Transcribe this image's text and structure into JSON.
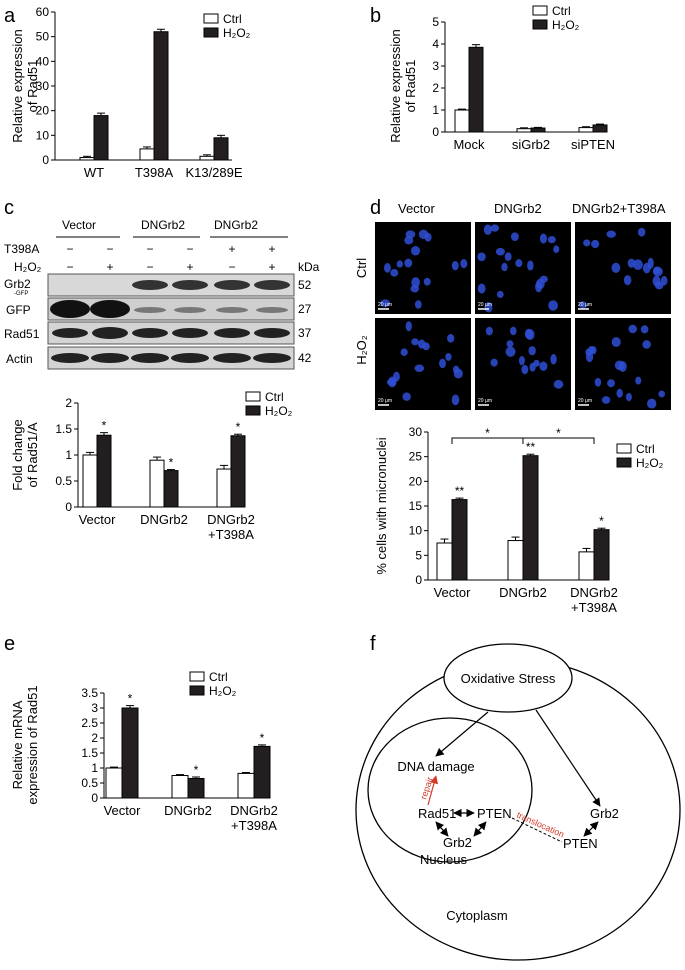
{
  "panels": {
    "a": "a",
    "b": "b",
    "c": "c",
    "d": "d",
    "e": "e",
    "f": "f"
  },
  "chart_data": [
    {
      "id": "a",
      "type": "bar",
      "categories": [
        "WT",
        "T398A",
        "K13/289E"
      ],
      "series": [
        {
          "name": "Ctrl",
          "values": [
            1,
            4.5,
            1.5
          ],
          "err": [
            0.5,
            0.8,
            0.6
          ]
        },
        {
          "name": "H₂O₂",
          "values": [
            18,
            52,
            9
          ],
          "err": [
            1,
            1,
            1
          ]
        }
      ],
      "ylabel": [
        "Relative expression",
        "of Rad51"
      ],
      "yticks": [
        0,
        10,
        20,
        30,
        40,
        50,
        60
      ],
      "ylim": [
        0,
        60
      ],
      "legend": "top-right"
    },
    {
      "id": "b",
      "type": "bar",
      "categories": [
        "Mock",
        "siGrb2",
        "siPTEN"
      ],
      "series": [
        {
          "name": "Ctrl",
          "values": [
            1,
            0.15,
            0.2
          ],
          "err": [
            0.04,
            0.04,
            0.04
          ]
        },
        {
          "name": "H₂O₂",
          "values": [
            3.85,
            0.18,
            0.32
          ],
          "err": [
            0.12,
            0.03,
            0.04
          ]
        }
      ],
      "ylabel": [
        "Relative expression",
        "of Rad51"
      ],
      "yticks": [
        0,
        1,
        2,
        3,
        4,
        5
      ],
      "ylim": [
        0,
        5
      ],
      "legend": "top-right"
    },
    {
      "id": "c",
      "type": "bar",
      "categories": [
        "Vector",
        "DNGrb2",
        "DNGrb2\n+T398A"
      ],
      "series": [
        {
          "name": "Ctrl",
          "values": [
            1.0,
            0.9,
            0.73
          ],
          "err": [
            0.05,
            0.06,
            0.07
          ],
          "stars": [
            "",
            "",
            ""
          ]
        },
        {
          "name": "H₂O₂",
          "values": [
            1.38,
            0.7,
            1.37
          ],
          "err": [
            0.05,
            0.02,
            0.03
          ],
          "stars": [
            "*",
            "*",
            "*"
          ]
        }
      ],
      "ylabel": [
        "Fold  change",
        "of Rad51/A"
      ],
      "yticks": [
        "0",
        "0.5",
        "1",
        "1.5",
        "2"
      ],
      "ylim": [
        0,
        2
      ],
      "legend": "top-right"
    },
    {
      "id": "d",
      "type": "bar",
      "categories": [
        "Vector",
        "DNGrb2",
        "DNGrb2\n+T398A"
      ],
      "series": [
        {
          "name": "Ctrl",
          "values": [
            7.5,
            8,
            5.7
          ],
          "err": [
            0.8,
            0.7,
            0.7
          ],
          "stars": [
            "",
            "",
            ""
          ]
        },
        {
          "name": "H₂O₂",
          "values": [
            16.3,
            25.2,
            10.2
          ],
          "err": [
            0.3,
            0.3,
            0.3
          ],
          "stars": [
            "**",
            "**",
            "*"
          ]
        }
      ],
      "ylabel": [
        "% cells with micronuclei"
      ],
      "yticks": [
        0,
        5,
        10,
        15,
        20,
        25,
        30
      ],
      "ylim": [
        0,
        30
      ],
      "legend": "top-right",
      "brackets": [
        "*",
        "*"
      ]
    },
    {
      "id": "e",
      "type": "bar",
      "categories": [
        "Vector",
        "DNGrb2",
        "DNGrb2\n+T398A"
      ],
      "series": [
        {
          "name": "Ctrl",
          "values": [
            1.0,
            0.75,
            0.82
          ],
          "err": [
            0.03,
            0.03,
            0.03
          ],
          "stars": [
            "",
            "",
            ""
          ]
        },
        {
          "name": "H₂O₂",
          "values": [
            3.0,
            0.65,
            1.72
          ],
          "err": [
            0.08,
            0.05,
            0.05
          ],
          "stars": [
            "*",
            "*",
            "*"
          ]
        }
      ],
      "ylabel": [
        "Relative  mRNA",
        "expression of Rad51"
      ],
      "yticks": [
        0,
        0.5,
        1,
        1.5,
        2,
        2.5,
        3,
        3.5
      ],
      "ylim": [
        0,
        3.5
      ],
      "legend": "top-right"
    }
  ],
  "blot": {
    "groups": [
      "Vector",
      "DNGrb2",
      "DNGrb2"
    ],
    "t398a_label": "T398A",
    "h2o2_label": "H₂O₂",
    "t398a": [
      "−",
      "−",
      "−",
      "−",
      "+",
      "+"
    ],
    "h2o2": [
      "−",
      "+",
      "−",
      "+",
      "−",
      "+"
    ],
    "kda": "kDa",
    "rows": [
      {
        "name": "Grb2",
        "sub": "-GFP",
        "kda": "52"
      },
      {
        "name": "GFP",
        "kda": "27"
      },
      {
        "name": "Rad51",
        "kda": "37"
      },
      {
        "name": "Actin",
        "kda": "42"
      }
    ]
  },
  "micro": {
    "cols": [
      "Vector",
      "DNGrb2",
      "DNGrb2+T398A"
    ],
    "rows": [
      "Ctrl",
      "H₂O₂"
    ],
    "scale": "20 µm"
  },
  "diagram": {
    "oxidative": "Oxidative Stress",
    "dna": "DNA damage",
    "repair": "repair",
    "rad51": "Rad51",
    "pten": "PTEN",
    "grb2": "Grb2",
    "nucleus": "Nucleus",
    "translocation": "translocation",
    "grb2_c": "Grb2",
    "pten_c": "PTEN",
    "cytoplasm": "Cytoplasm"
  }
}
